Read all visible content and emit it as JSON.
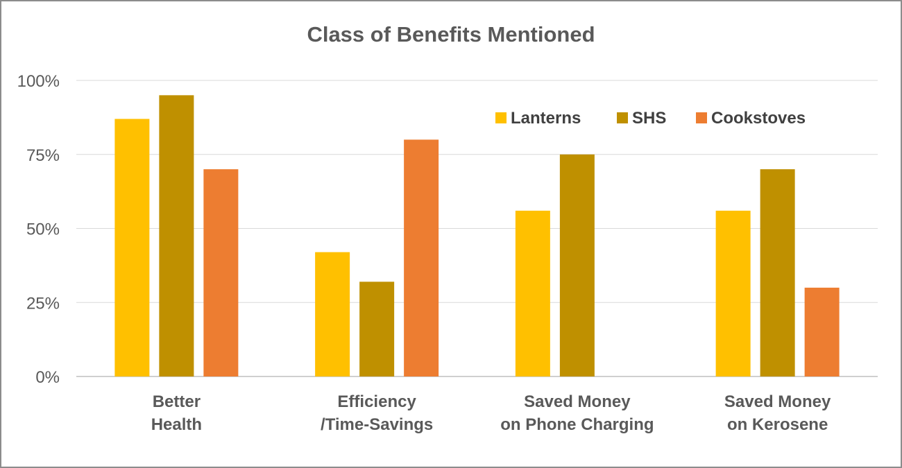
{
  "chart_data": {
    "type": "bar",
    "title": "Class of Benefits Mentioned",
    "xlabel": "",
    "ylabel": "",
    "categories": [
      [
        "Better",
        "Health"
      ],
      [
        "Efficiency",
        "/Time-Savings"
      ],
      [
        "Saved Money",
        "on Phone Charging"
      ],
      [
        "Saved Money",
        "on Kerosene"
      ]
    ],
    "series": [
      {
        "name": "Lanterns",
        "color": "#FFC000",
        "values": [
          87,
          42,
          56,
          56
        ]
      },
      {
        "name": "SHS",
        "color": "#BF9000",
        "values": [
          95,
          32,
          75,
          70
        ]
      },
      {
        "name": "Cookstoves",
        "color": "#ED7D31",
        "values": [
          70,
          80,
          null,
          30
        ]
      }
    ],
    "ylim": [
      0,
      100
    ],
    "yticks": [
      0,
      25,
      50,
      75,
      100
    ],
    "ytick_labels": [
      "0%",
      "25%",
      "50%",
      "75%",
      "100%"
    ],
    "grid": true,
    "legend_position": "top-right"
  }
}
